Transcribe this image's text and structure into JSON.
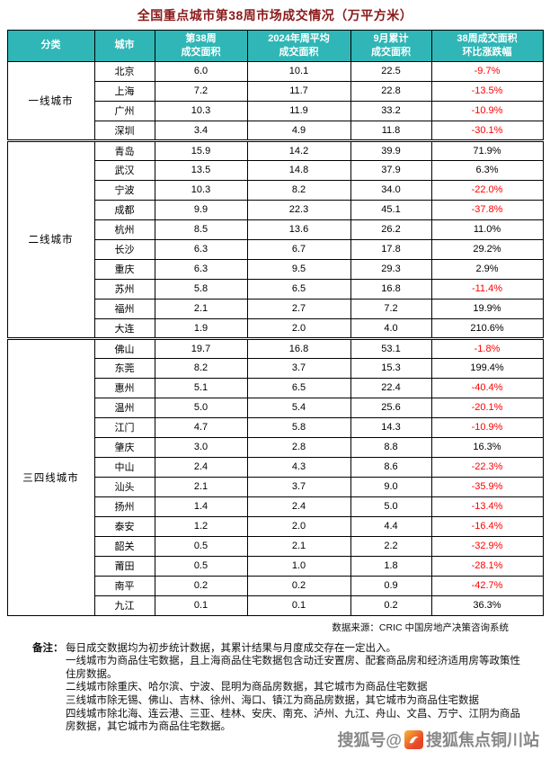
{
  "title": "全国重点城市第38周市场成交情况（万平方米）",
  "colors": {
    "header_bg": "#30B6B6",
    "header_text": "#FFFFFF",
    "negative": "#FF0000",
    "positive": "#000000",
    "title": "#8B1A1A"
  },
  "table": {
    "headers": [
      {
        "line1": "分类"
      },
      {
        "line1": "城市"
      },
      {
        "line1": "第38周",
        "line2": "成交面积"
      },
      {
        "line1": "2024年周平均",
        "line2": "成交面积"
      },
      {
        "line1": "9月累计",
        "line2": "成交面积"
      },
      {
        "line1": "38周成交面积",
        "line2": "环比涨跌幅"
      }
    ],
    "groups": [
      {
        "category": "一线城市",
        "rows": [
          {
            "city": "北京",
            "week38": "6.0",
            "avg": "10.1",
            "sep": "22.5",
            "wow": "-9.7%"
          },
          {
            "city": "上海",
            "week38": "7.2",
            "avg": "11.7",
            "sep": "22.8",
            "wow": "-13.5%"
          },
          {
            "city": "广州",
            "week38": "10.3",
            "avg": "11.9",
            "sep": "33.2",
            "wow": "-10.9%"
          },
          {
            "city": "深圳",
            "week38": "3.4",
            "avg": "4.9",
            "sep": "11.8",
            "wow": "-30.1%"
          }
        ]
      },
      {
        "category": "二线城市",
        "rows": [
          {
            "city": "青岛",
            "week38": "15.9",
            "avg": "14.2",
            "sep": "39.9",
            "wow": "71.9%"
          },
          {
            "city": "武汉",
            "week38": "13.5",
            "avg": "14.8",
            "sep": "37.9",
            "wow": "6.3%"
          },
          {
            "city": "宁波",
            "week38": "10.3",
            "avg": "8.2",
            "sep": "34.0",
            "wow": "-22.0%"
          },
          {
            "city": "成都",
            "week38": "9.9",
            "avg": "22.3",
            "sep": "45.1",
            "wow": "-37.8%"
          },
          {
            "city": "杭州",
            "week38": "8.5",
            "avg": "13.6",
            "sep": "26.2",
            "wow": "11.0%"
          },
          {
            "city": "长沙",
            "week38": "6.3",
            "avg": "6.7",
            "sep": "17.8",
            "wow": "29.2%"
          },
          {
            "city": "重庆",
            "week38": "6.3",
            "avg": "9.5",
            "sep": "29.3",
            "wow": "2.9%"
          },
          {
            "city": "苏州",
            "week38": "5.8",
            "avg": "6.5",
            "sep": "16.8",
            "wow": "-11.4%"
          },
          {
            "city": "福州",
            "week38": "2.1",
            "avg": "2.7",
            "sep": "7.2",
            "wow": "19.9%"
          },
          {
            "city": "大连",
            "week38": "1.9",
            "avg": "2.0",
            "sep": "4.0",
            "wow": "210.6%"
          }
        ]
      },
      {
        "category": "三四线城市",
        "rows": [
          {
            "city": "佛山",
            "week38": "19.7",
            "avg": "16.8",
            "sep": "53.1",
            "wow": "-1.8%"
          },
          {
            "city": "东莞",
            "week38": "8.2",
            "avg": "3.7",
            "sep": "15.3",
            "wow": "199.4%"
          },
          {
            "city": "惠州",
            "week38": "5.1",
            "avg": "6.5",
            "sep": "22.4",
            "wow": "-40.4%"
          },
          {
            "city": "温州",
            "week38": "5.0",
            "avg": "5.4",
            "sep": "25.6",
            "wow": "-20.1%"
          },
          {
            "city": "江门",
            "week38": "4.7",
            "avg": "5.8",
            "sep": "14.3",
            "wow": "-10.9%"
          },
          {
            "city": "肇庆",
            "week38": "3.0",
            "avg": "2.8",
            "sep": "8.8",
            "wow": "16.3%"
          },
          {
            "city": "中山",
            "week38": "2.4",
            "avg": "4.3",
            "sep": "8.6",
            "wow": "-22.3%"
          },
          {
            "city": "汕头",
            "week38": "2.1",
            "avg": "3.7",
            "sep": "9.0",
            "wow": "-35.9%"
          },
          {
            "city": "扬州",
            "week38": "1.4",
            "avg": "2.4",
            "sep": "5.0",
            "wow": "-13.4%"
          },
          {
            "city": "泰安",
            "week38": "1.2",
            "avg": "2.0",
            "sep": "4.4",
            "wow": "-16.4%"
          },
          {
            "city": "韶关",
            "week38": "0.5",
            "avg": "2.1",
            "sep": "2.2",
            "wow": "-32.9%"
          },
          {
            "city": "莆田",
            "week38": "0.5",
            "avg": "1.0",
            "sep": "1.8",
            "wow": "-28.1%"
          },
          {
            "city": "南平",
            "week38": "0.2",
            "avg": "0.2",
            "sep": "0.9",
            "wow": "-42.7%"
          },
          {
            "city": "九江",
            "week38": "0.1",
            "avg": "0.1",
            "sep": "0.2",
            "wow": "36.3%"
          }
        ]
      }
    ]
  },
  "source": "数据来源：CRIC 中国房地产决策咨询系统",
  "notes": {
    "label": "备注：",
    "lines": [
      "每日成交数据均为初步统计数据，其累计结果与月度成交存在一定出入。",
      "一线城市为商品住宅数据，且上海商品住宅数据包含动迁安置房、配套商品房和经济适用房等政策性住房数据。",
      "二线城市除重庆、哈尔滨、宁波、昆明为商品房数据，其它城市为商品住宅数据",
      "三线城市除无锡、佛山、吉林、徐州、海口、镇江为商品房数据，其它城市为商品住宅数据",
      "四线城市除北海、连云港、三亚、桂林、安庆、南充、泸州、九江、舟山、文昌、万宁、江阴为商品房数据，其它城市为商品住宅数据。"
    ]
  },
  "watermark": {
    "prefix": "搜狐号@",
    "account": "搜狐焦点铜川站"
  }
}
